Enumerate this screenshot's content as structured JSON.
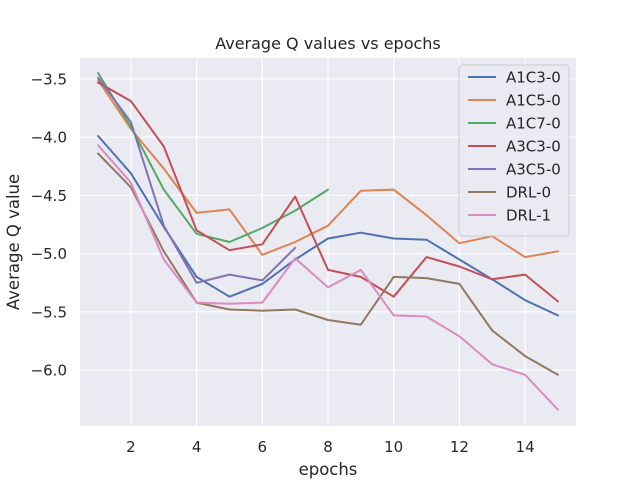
{
  "chart_data": {
    "type": "line",
    "title": "Average Q values vs epochs",
    "xlabel": "epochs",
    "ylabel": "Average Q value",
    "xlim": [
      0.45,
      15.55
    ],
    "ylim": [
      -6.48,
      -3.32
    ],
    "xticks": [
      2,
      4,
      6,
      8,
      10,
      12,
      14
    ],
    "yticks": [
      -6.0,
      -5.5,
      -5.0,
      -4.5,
      -4.0,
      -3.5
    ],
    "ytick_labels": [
      "−6.0",
      "−5.5",
      "−5.0",
      "−4.5",
      "−4.0",
      "−3.5"
    ],
    "grid": true,
    "legend_position": "top-right",
    "series": [
      {
        "name": "A1C3-0",
        "color": "#4c72b0",
        "x": [
          1,
          2,
          3,
          4,
          5,
          6,
          7,
          8,
          9,
          10,
          11,
          12,
          13,
          14,
          15
        ],
        "y": [
          -3.99,
          -4.31,
          -4.77,
          -5.2,
          -5.37,
          -5.26,
          -5.05,
          -4.87,
          -4.82,
          -4.87,
          -4.88,
          -5.05,
          -5.22,
          -5.4,
          -5.53
        ]
      },
      {
        "name": "A1C5-0",
        "color": "#dd8452",
        "x": [
          1,
          2,
          3,
          4,
          5,
          6,
          7,
          8,
          9,
          10,
          11,
          12,
          13,
          14,
          15
        ],
        "y": [
          -3.51,
          -3.93,
          -4.27,
          -4.65,
          -4.62,
          -5.01,
          -4.9,
          -4.76,
          -4.46,
          -4.45,
          -4.67,
          -4.91,
          -4.85,
          -5.03,
          -4.98
        ]
      },
      {
        "name": "A1C7-0",
        "color": "#55a868",
        "x": [
          1,
          2,
          3,
          4,
          5,
          6,
          7,
          8
        ],
        "y": [
          -3.45,
          -3.91,
          -4.45,
          -4.83,
          -4.9,
          -4.78,
          -4.63,
          -4.45
        ]
      },
      {
        "name": "A3C3-0",
        "color": "#c44e52",
        "x": [
          1,
          2,
          3,
          4,
          5,
          6,
          7,
          8,
          9,
          10,
          11,
          12,
          13,
          14,
          15
        ],
        "y": [
          -3.53,
          -3.69,
          -4.08,
          -4.8,
          -4.97,
          -4.92,
          -4.51,
          -5.14,
          -5.2,
          -5.37,
          -5.03,
          -5.11,
          -5.22,
          -5.18,
          -5.41
        ]
      },
      {
        "name": "A3C5-0",
        "color": "#8172b3",
        "x": [
          1,
          2,
          3,
          4,
          5,
          6,
          7
        ],
        "y": [
          -3.49,
          -3.87,
          -4.76,
          -5.25,
          -5.18,
          -5.23,
          -4.95
        ]
      },
      {
        "name": "DRL-0",
        "color": "#937860",
        "x": [
          1,
          2,
          3,
          4,
          5,
          6,
          7,
          8,
          9,
          10,
          11,
          12,
          13,
          14,
          15
        ],
        "y": [
          -4.14,
          -4.43,
          -4.98,
          -5.42,
          -5.48,
          -5.49,
          -5.48,
          -5.57,
          -5.61,
          -5.2,
          -5.21,
          -5.26,
          -5.66,
          -5.88,
          -6.04
        ]
      },
      {
        "name": "DRL-1",
        "color": "#da8bc3",
        "x": [
          1,
          2,
          3,
          4,
          5,
          6,
          7,
          8,
          9,
          10,
          11,
          12,
          13,
          14,
          15
        ],
        "y": [
          -4.07,
          -4.39,
          -5.05,
          -5.42,
          -5.43,
          -5.42,
          -5.04,
          -5.29,
          -5.14,
          -5.53,
          -5.54,
          -5.71,
          -5.95,
          -6.04,
          -6.34
        ]
      }
    ]
  }
}
